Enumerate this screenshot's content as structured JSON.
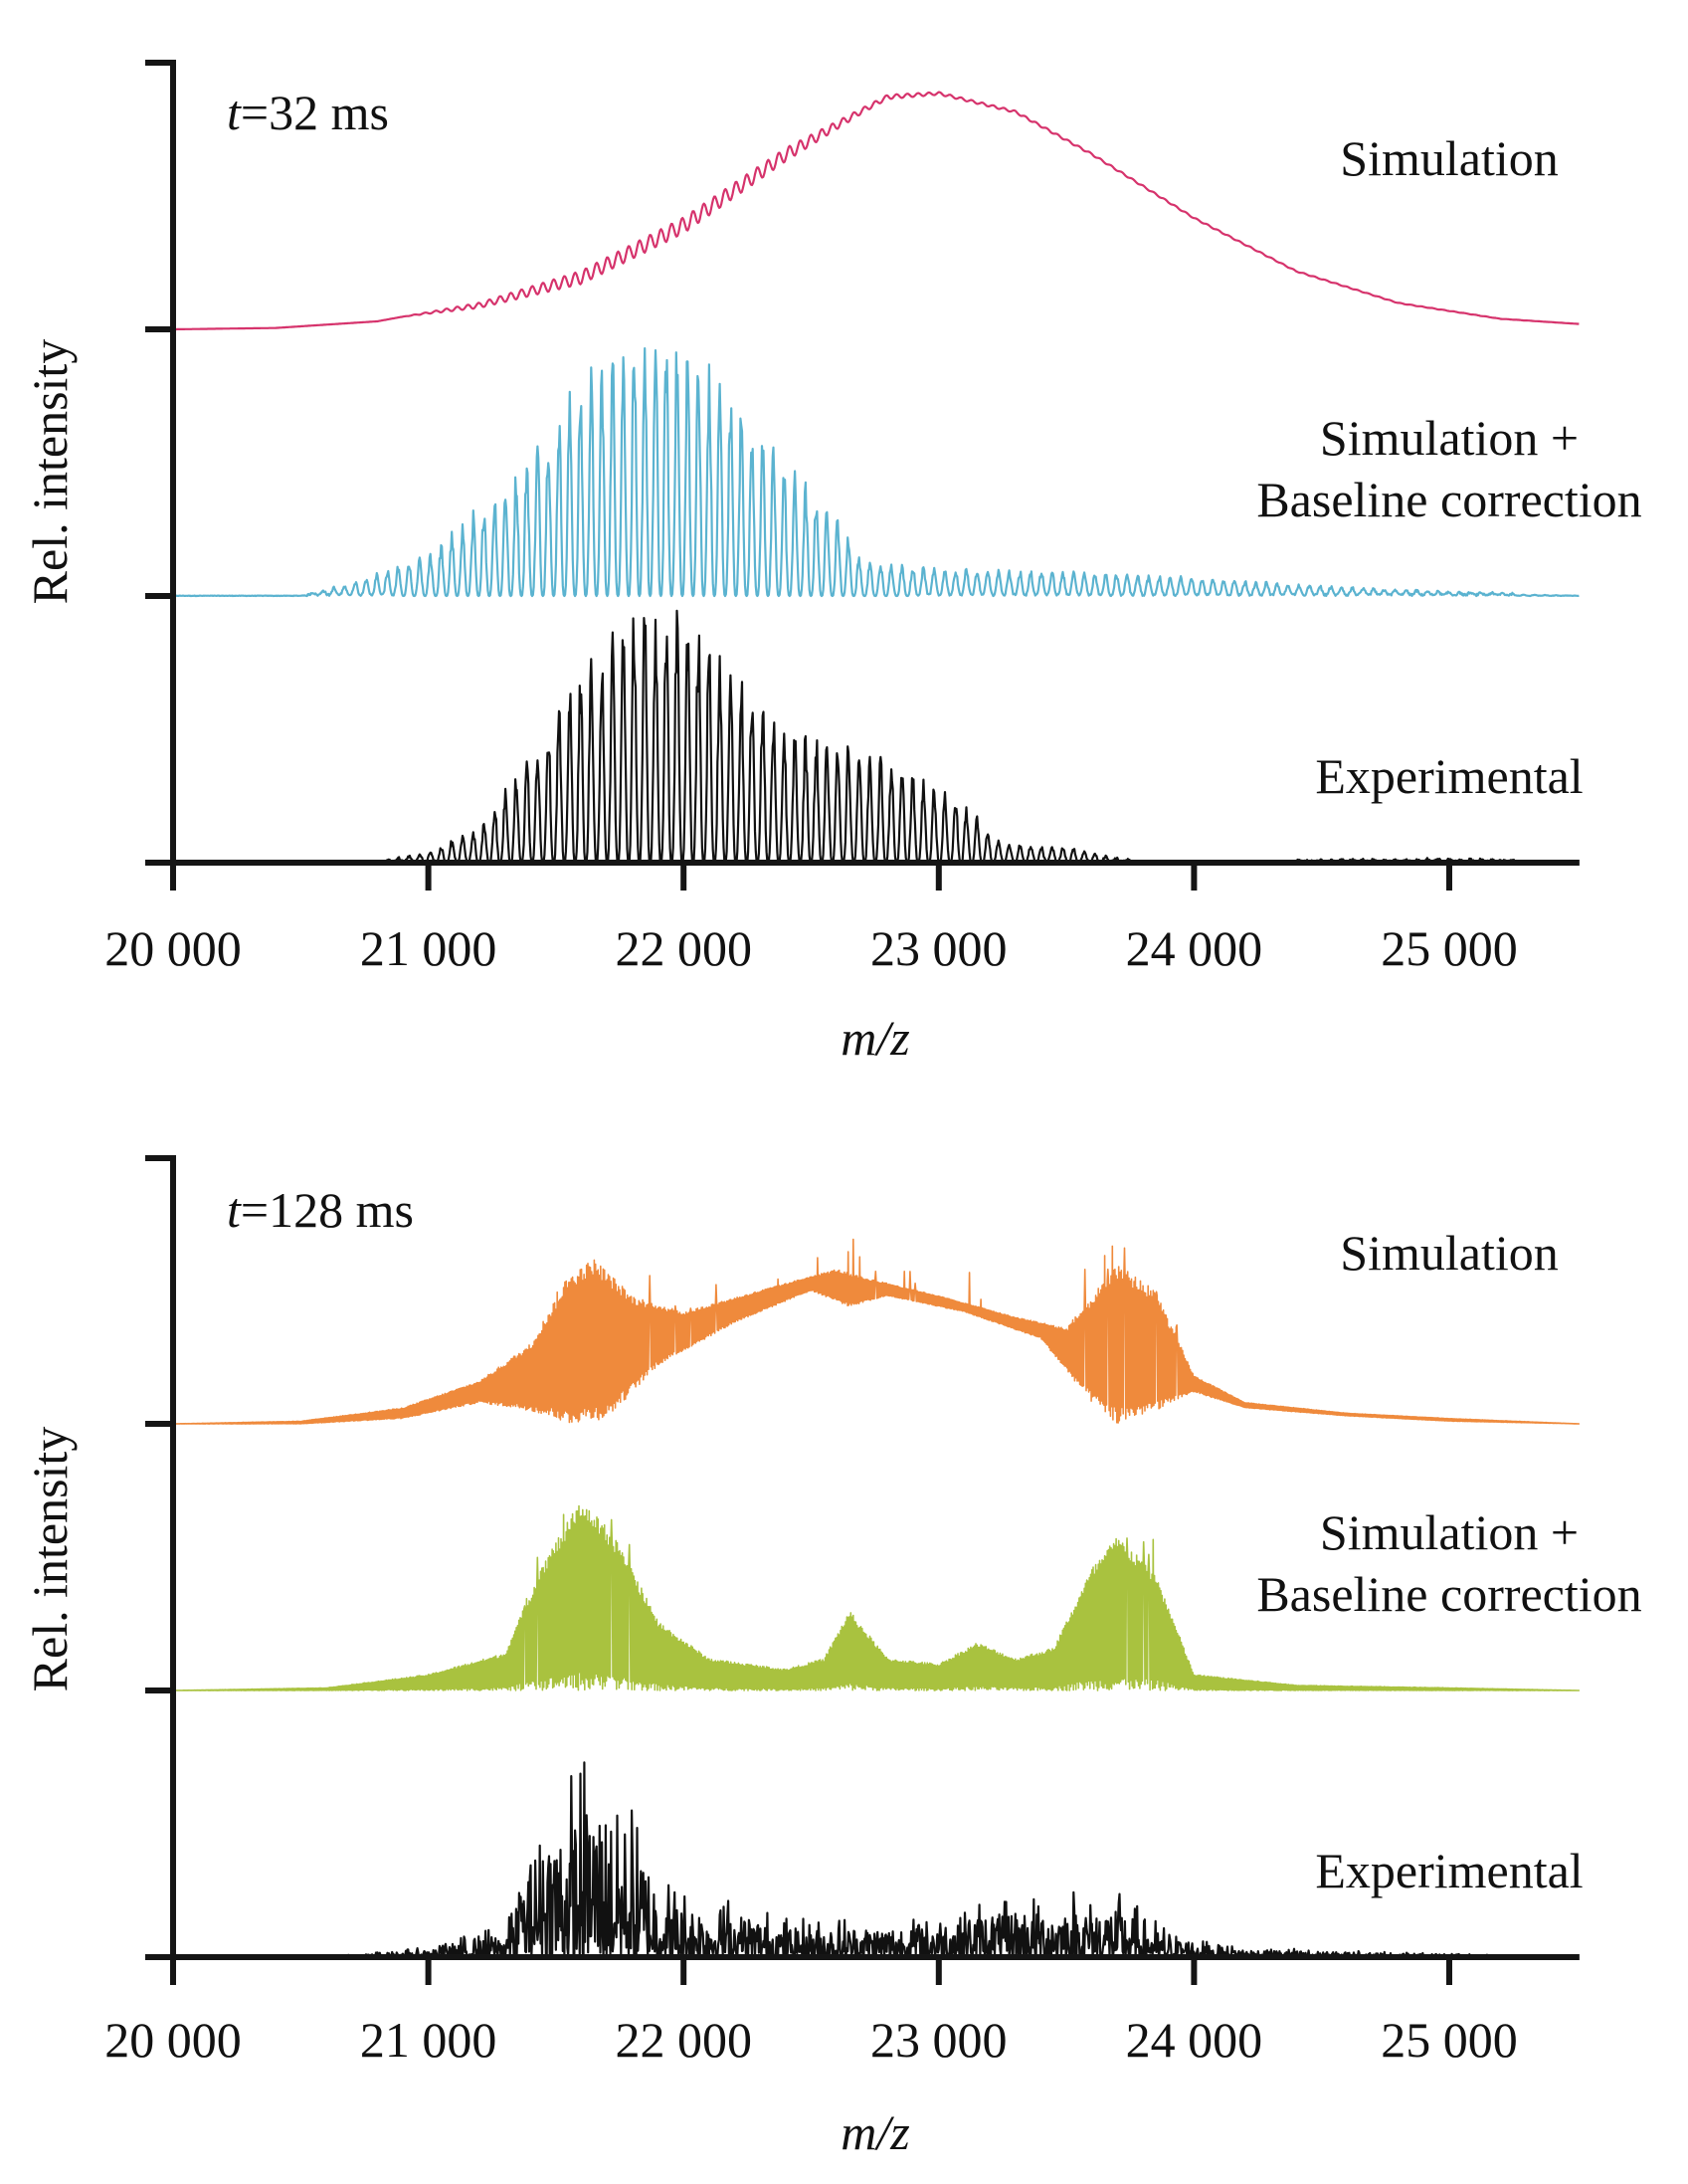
{
  "figure": {
    "y_axis_title": "Rel. intensity",
    "x_axis_title": "m/z"
  },
  "chart_data": [
    {
      "type": "line",
      "title": "t=32 ms",
      "time_label": {
        "var": "t",
        "rest": "=32 ms"
      },
      "xlabel": "m/z",
      "ylabel": "Rel. intensity",
      "xlim": [
        20000,
        25510
      ],
      "x_ticks": [
        20000,
        21000,
        22000,
        23000,
        24000,
        25000
      ],
      "x_tick_labels": [
        "20 000",
        "21 000",
        "22 000",
        "23 000",
        "24 000",
        "25 000"
      ],
      "y_ticks_note": "stacked traces, y tick marks at each trace baseline; no numeric y labels",
      "grid": false,
      "series": [
        {
          "name": "Simulation",
          "label_lines": [
            "Simulation"
          ],
          "color": "#d6336c",
          "style": "smooth-with-ripple",
          "stack_index": 2,
          "envelope": [
            [
              20000,
              0.0
            ],
            [
              20400,
              0.005
            ],
            [
              20800,
              0.03
            ],
            [
              21200,
              0.1
            ],
            [
              21600,
              0.22
            ],
            [
              22000,
              0.42
            ],
            [
              22400,
              0.68
            ],
            [
              22800,
              0.88
            ],
            [
              23000,
              0.89
            ],
            [
              23300,
              0.82
            ],
            [
              23600,
              0.66
            ],
            [
              24000,
              0.42
            ],
            [
              24400,
              0.22
            ],
            [
              24800,
              0.1
            ],
            [
              25200,
              0.04
            ],
            [
              25510,
              0.02
            ]
          ],
          "ripple": [
            [
              20000,
              0
            ],
            [
              20900,
              0.0
            ],
            [
              21200,
              0.02
            ],
            [
              21600,
              0.05
            ],
            [
              22000,
              0.06
            ],
            [
              22400,
              0.05
            ],
            [
              22700,
              0.02
            ],
            [
              23000,
              0.01
            ],
            [
              24000,
              0.005
            ],
            [
              25510,
              0.0
            ]
          ],
          "peak_spacing": 42
        },
        {
          "name": "Simulation + Baseline correction",
          "label_lines": [
            "Simulation +",
            "Baseline correction"
          ],
          "color": "#5bb3d0",
          "style": "comb",
          "stack_index": 1,
          "envelope": [
            [
              20000,
              0
            ],
            [
              20500,
              0.0
            ],
            [
              20700,
              0.04
            ],
            [
              21000,
              0.14
            ],
            [
              21300,
              0.38
            ],
            [
              21500,
              0.62
            ],
            [
              21700,
              0.82
            ],
            [
              21850,
              0.9
            ],
            [
              22000,
              0.86
            ],
            [
              22200,
              0.68
            ],
            [
              22400,
              0.44
            ],
            [
              22600,
              0.28
            ],
            [
              22700,
              0.12
            ],
            [
              23000,
              0.09
            ],
            [
              23500,
              0.08
            ],
            [
              24000,
              0.06
            ],
            [
              24500,
              0.03
            ],
            [
              25000,
              0.01
            ],
            [
              25510,
              0.0
            ]
          ],
          "peak_spacing": 42
        },
        {
          "name": "Experimental",
          "label_lines": [
            "Experimental"
          ],
          "color": "#111111",
          "style": "comb",
          "stack_index": 0,
          "envelope": [
            [
              20000,
              0
            ],
            [
              20800,
              0.0
            ],
            [
              21000,
              0.03
            ],
            [
              21200,
              0.12
            ],
            [
              21400,
              0.38
            ],
            [
              21600,
              0.66
            ],
            [
              21800,
              0.88
            ],
            [
              22000,
              0.86
            ],
            [
              22200,
              0.68
            ],
            [
              22400,
              0.46
            ],
            [
              22700,
              0.4
            ],
            [
              22900,
              0.3
            ],
            [
              23100,
              0.2
            ],
            [
              23250,
              0.06
            ],
            [
              23500,
              0.05
            ],
            [
              23650,
              0.02
            ],
            [
              23800,
              0.0
            ],
            [
              25000,
              0.01
            ],
            [
              25510,
              0.0
            ]
          ],
          "peak_spacing": 42
        }
      ]
    },
    {
      "type": "line",
      "title": "t=128 ms",
      "time_label": {
        "var": "t",
        "rest": "=128 ms"
      },
      "xlabel": "m/z",
      "ylabel": "Rel. intensity",
      "xlim": [
        20000,
        25510
      ],
      "x_ticks": [
        20000,
        21000,
        22000,
        23000,
        24000,
        25000
      ],
      "x_tick_labels": [
        "20 000",
        "21 000",
        "22 000",
        "23 000",
        "24 000",
        "25 000"
      ],
      "y_ticks_note": "stacked traces, y tick marks at each trace baseline; no numeric y labels",
      "grid": false,
      "series": [
        {
          "name": "Simulation",
          "label_lines": [
            "Simulation"
          ],
          "color": "#ef8a3c",
          "style": "dense-band",
          "stack_index": 2,
          "upper": [
            [
              20000,
              0
            ],
            [
              20500,
              0.01
            ],
            [
              20900,
              0.06
            ],
            [
              21200,
              0.16
            ],
            [
              21400,
              0.3
            ],
            [
              21550,
              0.56
            ],
            [
              21650,
              0.62
            ],
            [
              21800,
              0.48
            ],
            [
              22000,
              0.42
            ],
            [
              22300,
              0.5
            ],
            [
              22600,
              0.58
            ],
            [
              22700,
              0.55
            ],
            [
              23000,
              0.48
            ],
            [
              23300,
              0.4
            ],
            [
              23500,
              0.36
            ],
            [
              23700,
              0.6
            ],
            [
              23850,
              0.5
            ],
            [
              24000,
              0.18
            ],
            [
              24200,
              0.08
            ],
            [
              24600,
              0.04
            ],
            [
              25000,
              0.02
            ],
            [
              25510,
              0.0
            ]
          ],
          "lower": [
            [
              20000,
              0
            ],
            [
              20500,
              0.0
            ],
            [
              20900,
              0.02
            ],
            [
              21200,
              0.08
            ],
            [
              21400,
              0.05
            ],
            [
              21550,
              0.0
            ],
            [
              21700,
              0.02
            ],
            [
              21900,
              0.22
            ],
            [
              22200,
              0.38
            ],
            [
              22500,
              0.5
            ],
            [
              22650,
              0.44
            ],
            [
              22800,
              0.48
            ],
            [
              23100,
              0.42
            ],
            [
              23400,
              0.32
            ],
            [
              23600,
              0.08
            ],
            [
              23700,
              0.0
            ],
            [
              23850,
              0.05
            ],
            [
              24000,
              0.12
            ],
            [
              24200,
              0.06
            ],
            [
              24600,
              0.03
            ],
            [
              25000,
              0.01
            ],
            [
              25510,
              0.0
            ]
          ]
        },
        {
          "name": "Simulation + Baseline correction",
          "label_lines": [
            "Simulation +",
            "Baseline correction"
          ],
          "color": "#a9c23f",
          "style": "dense-band",
          "stack_index": 1,
          "upper": [
            [
              20000,
              0
            ],
            [
              20600,
              0.01
            ],
            [
              21000,
              0.06
            ],
            [
              21300,
              0.14
            ],
            [
              21450,
              0.48
            ],
            [
              21600,
              0.72
            ],
            [
              21750,
              0.55
            ],
            [
              21900,
              0.26
            ],
            [
              22100,
              0.12
            ],
            [
              22400,
              0.08
            ],
            [
              22550,
              0.12
            ],
            [
              22650,
              0.3
            ],
            [
              22800,
              0.12
            ],
            [
              23000,
              0.1
            ],
            [
              23150,
              0.18
            ],
            [
              23300,
              0.12
            ],
            [
              23450,
              0.16
            ],
            [
              23600,
              0.46
            ],
            [
              23700,
              0.58
            ],
            [
              23850,
              0.44
            ],
            [
              24000,
              0.06
            ],
            [
              24400,
              0.02
            ],
            [
              25000,
              0.01
            ],
            [
              25510,
              0.0
            ]
          ],
          "lower": [
            [
              20000,
              0
            ],
            [
              25510,
              0
            ]
          ]
        },
        {
          "name": "Experimental",
          "label_lines": [
            "Experimental"
          ],
          "color": "#111111",
          "style": "noisy-spikes",
          "stack_index": 0,
          "upper": [
            [
              20000,
              0
            ],
            [
              20600,
              0.0
            ],
            [
              21000,
              0.03
            ],
            [
              21300,
              0.1
            ],
            [
              21450,
              0.5
            ],
            [
              21650,
              0.62
            ],
            [
              21800,
              0.48
            ],
            [
              21950,
              0.22
            ],
            [
              22200,
              0.18
            ],
            [
              22400,
              0.12
            ],
            [
              22800,
              0.12
            ],
            [
              23200,
              0.18
            ],
            [
              23500,
              0.2
            ],
            [
              23700,
              0.2
            ],
            [
              23900,
              0.08
            ],
            [
              24200,
              0.03
            ],
            [
              24600,
              0.02
            ],
            [
              25000,
              0.01
            ],
            [
              25510,
              0.0
            ]
          ],
          "lower": [
            [
              20000,
              0
            ],
            [
              25510,
              0
            ]
          ]
        }
      ]
    }
  ]
}
